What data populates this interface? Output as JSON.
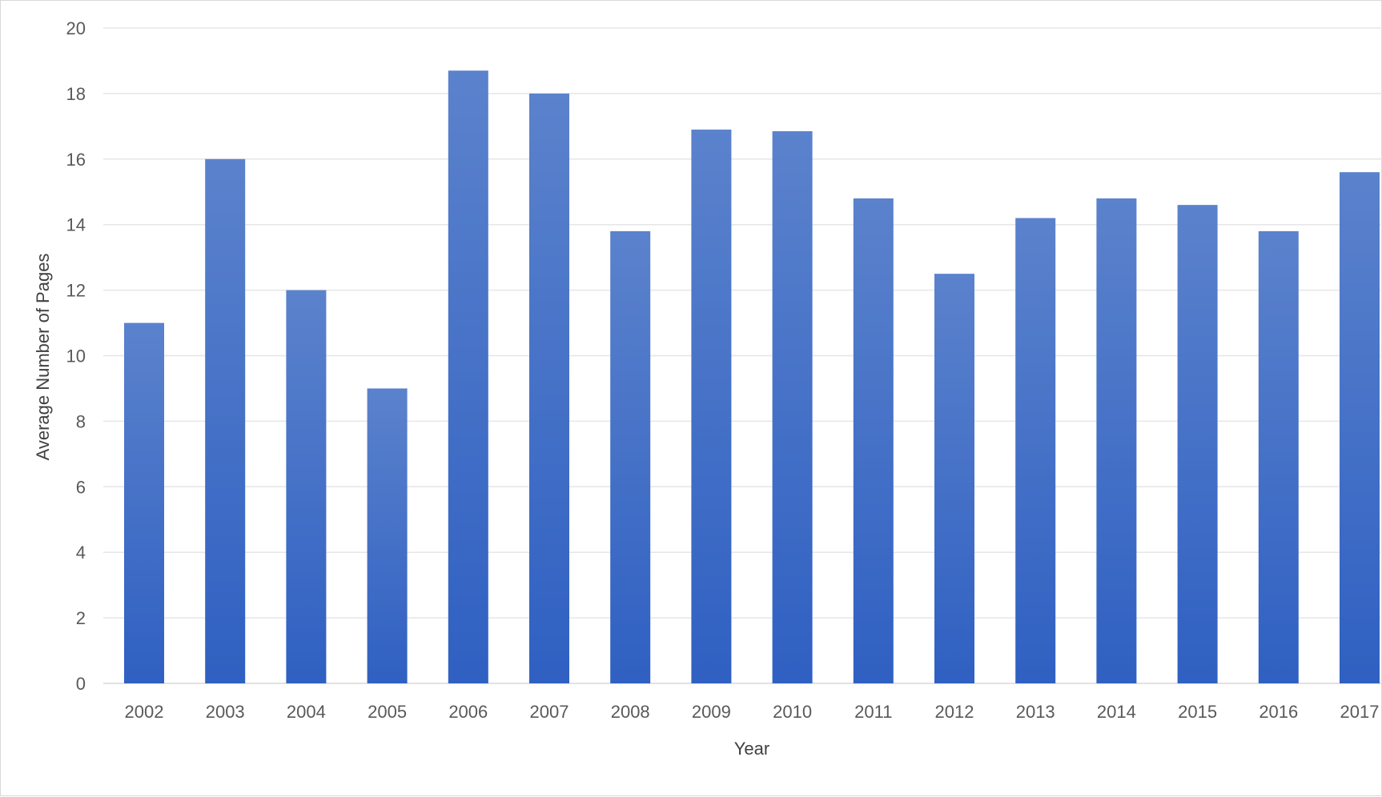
{
  "chart_data": {
    "type": "bar",
    "title": "",
    "xlabel": "Year",
    "ylabel": "Average Number of Pages",
    "categories": [
      "2002",
      "2003",
      "2004",
      "2005",
      "2006",
      "2007",
      "2008",
      "2009",
      "2010",
      "2011",
      "2012",
      "2013",
      "2014",
      "2015",
      "2016",
      "2017"
    ],
    "values": [
      11,
      16,
      12,
      9,
      18.7,
      18,
      13.8,
      16.9,
      16.85,
      14.8,
      12.5,
      14.2,
      14.8,
      14.6,
      13.8,
      15.6
    ],
    "ylim": [
      0,
      20
    ],
    "yticks": [
      "0",
      "2",
      "4",
      "6",
      "8",
      "10",
      "12",
      "14",
      "16",
      "18",
      "20"
    ],
    "grid": true,
    "legend": "none",
    "bar_color_top": "#5b82cc",
    "bar_color_bottom": "#2f60c2"
  }
}
